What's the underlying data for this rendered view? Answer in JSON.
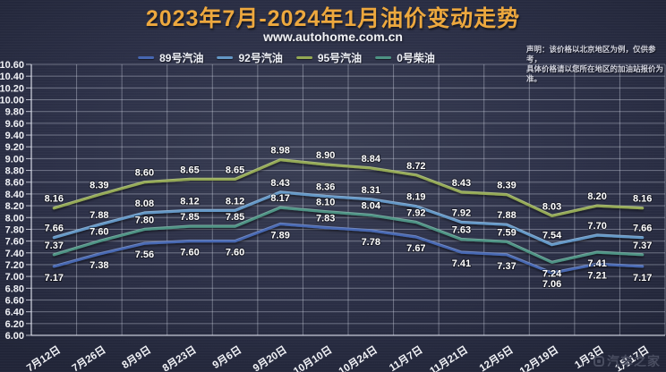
{
  "title": "2023年7月-2024年1月油价变动走势",
  "subtitle": "www.autohome.com.cn",
  "disclaimer": {
    "line1": "声明：该价格以北京地区为例，仅供参考，",
    "line2": "具体价格请以您所在地区的加油站报价为准。"
  },
  "watermark": "汽车之家",
  "colors": {
    "title_accent": "#eda83e",
    "background": "#2d3148",
    "grid": "rgba(222,226,240,0.38)",
    "axis": "rgba(235,238,248,0.75)",
    "axis_text": "#f2f3f7",
    "data_label": "#ffffff"
  },
  "chart_data": {
    "type": "line",
    "title": "2023年7月-2024年1月油价变动走势",
    "xlabel": "",
    "ylabel": "",
    "ylim": [
      6.0,
      10.6
    ],
    "ytick_step": 0.2,
    "grid": true,
    "legend_position": "top-center",
    "categories": [
      "7月12日",
      "7月26日",
      "8月9日",
      "8月23日",
      "9月6日",
      "9月20日",
      "10月10日",
      "10月24日",
      "11月7日",
      "11月21日",
      "12月5日",
      "12月19日",
      "1月3日",
      "1月17日"
    ],
    "series": [
      {
        "name": "89号汽油",
        "color": "#4767b2",
        "values": [
          7.17,
          7.38,
          7.56,
          7.6,
          7.6,
          7.89,
          7.83,
          7.78,
          7.67,
          7.41,
          7.37,
          7.06,
          7.21,
          7.17
        ],
        "label_side": "below",
        "label_above_indices": [
          6
        ],
        "label_below_indices": []
      },
      {
        "name": "92号汽油",
        "color": "#6497c6",
        "values": [
          7.66,
          7.88,
          8.08,
          8.12,
          8.12,
          8.43,
          8.36,
          8.31,
          8.19,
          7.92,
          7.88,
          7.54,
          7.7,
          7.66
        ],
        "label_side": "above",
        "label_above_indices": [],
        "label_below_indices": []
      },
      {
        "name": "95号汽油",
        "color": "#94a954",
        "values": [
          8.16,
          8.39,
          8.6,
          8.65,
          8.65,
          8.98,
          8.9,
          8.84,
          8.72,
          8.43,
          8.39,
          8.03,
          8.2,
          8.16
        ],
        "label_side": "above",
        "label_above_indices": [],
        "label_below_indices": []
      },
      {
        "name": "0号柴油",
        "color": "#4e9384",
        "values": [
          7.37,
          7.6,
          7.8,
          7.85,
          7.85,
          8.17,
          8.1,
          8.04,
          7.92,
          7.63,
          7.59,
          7.24,
          7.41,
          7.37
        ],
        "label_side": "above",
        "label_above_indices": [],
        "label_below_indices": [
          11,
          12
        ]
      }
    ]
  }
}
